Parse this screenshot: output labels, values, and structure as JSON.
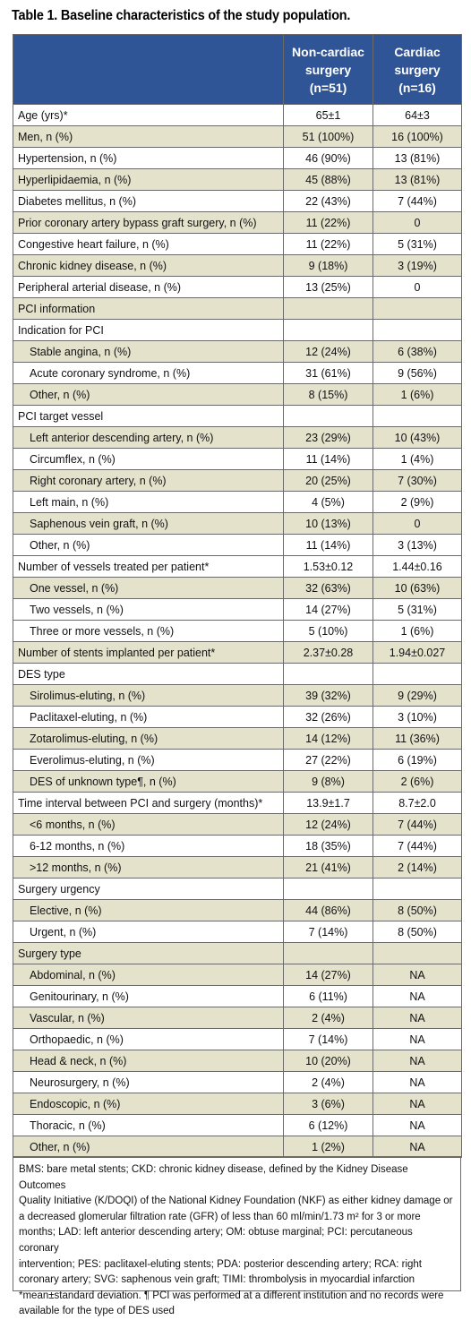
{
  "title": "Table 1. Baseline characteristics of the study population.",
  "header": {
    "col1": "",
    "col2": [
      "Non-cardiac",
      "surgery",
      "(n=51)"
    ],
    "col3": [
      "Cardiac",
      "surgery",
      "(n=16)"
    ]
  },
  "rows": [
    {
      "label": "Age (yrs)*",
      "a": "65±1",
      "b": "64±3",
      "indent": false,
      "shade": false
    },
    {
      "label": "Men, n (%)",
      "a": "51 (100%)",
      "b": "16 (100%)",
      "indent": false,
      "shade": true
    },
    {
      "label": "Hypertension, n (%)",
      "a": "46 (90%)",
      "b": "13 (81%)",
      "indent": false,
      "shade": false
    },
    {
      "label": "Hyperlipidaemia, n (%)",
      "a": "45 (88%)",
      "b": "13 (81%)",
      "indent": false,
      "shade": true
    },
    {
      "label": "Diabetes mellitus, n (%)",
      "a": "22 (43%)",
      "b": "7 (44%)",
      "indent": false,
      "shade": false
    },
    {
      "label": "Prior coronary artery bypass graft surgery, n (%)",
      "a": "11 (22%)",
      "b": "0",
      "indent": false,
      "shade": true
    },
    {
      "label": "Congestive heart failure, n (%)",
      "a": "11 (22%)",
      "b": "5 (31%)",
      "indent": false,
      "shade": false
    },
    {
      "label": "Chronic kidney disease, n (%)",
      "a": "9 (18%)",
      "b": "3 (19%)",
      "indent": false,
      "shade": true
    },
    {
      "label": "Peripheral arterial disease, n (%)",
      "a": "13 (25%)",
      "b": "0",
      "indent": false,
      "shade": false
    },
    {
      "label": "PCI information",
      "a": "",
      "b": "",
      "indent": false,
      "shade": true,
      "section": true
    },
    {
      "label": "Indication for PCI",
      "a": "",
      "b": "",
      "indent": false,
      "shade": false,
      "section": true
    },
    {
      "label": "Stable angina, n (%)",
      "a": "12 (24%)",
      "b": "6 (38%)",
      "indent": true,
      "shade": true
    },
    {
      "label": "Acute coronary syndrome, n (%)",
      "a": "31 (61%)",
      "b": "9 (56%)",
      "indent": true,
      "shade": false
    },
    {
      "label": "Other, n (%)",
      "a": "8 (15%)",
      "b": "1 (6%)",
      "indent": true,
      "shade": true
    },
    {
      "label": "PCI target vessel",
      "a": "",
      "b": "",
      "indent": false,
      "shade": false,
      "section": true
    },
    {
      "label": "Left anterior descending artery, n (%)",
      "a": "23 (29%)",
      "b": "10 (43%)",
      "indent": true,
      "shade": true
    },
    {
      "label": "Circumflex, n (%)",
      "a": "11 (14%)",
      "b": "1 (4%)",
      "indent": true,
      "shade": false
    },
    {
      "label": "Right coronary artery, n (%)",
      "a": "20 (25%)",
      "b": "7 (30%)",
      "indent": true,
      "shade": true
    },
    {
      "label": "Left main, n (%)",
      "a": "4 (5%)",
      "b": "2 (9%)",
      "indent": true,
      "shade": false
    },
    {
      "label": "Saphenous vein graft, n (%)",
      "a": "10 (13%)",
      "b": "0",
      "indent": true,
      "shade": true
    },
    {
      "label": "Other, n (%)",
      "a": "11 (14%)",
      "b": "3 (13%)",
      "indent": true,
      "shade": false
    },
    {
      "label": "Number of vessels treated per patient*",
      "a": "1.53±0.12",
      "b": "1.44±0.16",
      "indent": false,
      "shade": false
    },
    {
      "label": "One vessel, n (%)",
      "a": "32 (63%)",
      "b": "10 (63%)",
      "indent": true,
      "shade": true
    },
    {
      "label": "Two vessels, n (%)",
      "a": "14 (27%)",
      "b": "5 (31%)",
      "indent": true,
      "shade": false
    },
    {
      "label": "Three or more vessels, n (%)",
      "a": "5 (10%)",
      "b": "1 (6%)",
      "indent": true,
      "shade": false
    },
    {
      "label": "Number of stents implanted per patient*",
      "a": "2.37±0.28",
      "b": "1.94±0.027",
      "indent": false,
      "shade": true
    },
    {
      "label": "DES type",
      "a": "",
      "b": "",
      "indent": false,
      "shade": false,
      "section": true
    },
    {
      "label": "Sirolimus-eluting, n (%)",
      "a": "39 (32%)",
      "b": "9 (29%)",
      "indent": true,
      "shade": true
    },
    {
      "label": "Paclitaxel-eluting, n (%)",
      "a": "32 (26%)",
      "b": "3 (10%)",
      "indent": true,
      "shade": false
    },
    {
      "label": "Zotarolimus-eluting, n (%)",
      "a": "14 (12%)",
      "b": "11 (36%)",
      "indent": true,
      "shade": true
    },
    {
      "label": "Everolimus-eluting, n (%)",
      "a": "27 (22%)",
      "b": "6 (19%)",
      "indent": true,
      "shade": false
    },
    {
      "label": "DES of unknown type¶, n (%)",
      "a": "9 (8%)",
      "b": "2 (6%)",
      "indent": true,
      "shade": true
    },
    {
      "label": "Time interval between PCI and surgery (months)*",
      "a": "13.9±1.7",
      "b": "8.7±2.0",
      "indent": false,
      "shade": false
    },
    {
      "label": "<6 months, n (%)",
      "a": "12 (24%)",
      "b": "7 (44%)",
      "indent": true,
      "shade": true
    },
    {
      "label": "6-12 months, n (%)",
      "a": "18 (35%)",
      "b": "7 (44%)",
      "indent": true,
      "shade": false
    },
    {
      "label": ">12 months, n (%)",
      "a": "21 (41%)",
      "b": "2 (14%)",
      "indent": true,
      "shade": true
    },
    {
      "label": "Surgery urgency",
      "a": "",
      "b": "",
      "indent": false,
      "shade": false,
      "section": true
    },
    {
      "label": "Elective, n (%)",
      "a": "44 (86%)",
      "b": "8 (50%)",
      "indent": true,
      "shade": true
    },
    {
      "label": "Urgent, n (%)",
      "a": "7 (14%)",
      "b": "8 (50%)",
      "indent": true,
      "shade": false
    },
    {
      "label": "Surgery type",
      "a": "",
      "b": "",
      "indent": false,
      "shade": true,
      "section": true
    },
    {
      "label": "Abdominal, n (%)",
      "a": "14 (27%)",
      "b": "NA",
      "indent": true,
      "shade": true
    },
    {
      "label": "Genitourinary, n (%)",
      "a": "6 (11%)",
      "b": "NA",
      "indent": true,
      "shade": false
    },
    {
      "label": "Vascular, n (%)",
      "a": "2 (4%)",
      "b": "NA",
      "indent": true,
      "shade": true
    },
    {
      "label": "Orthopaedic, n (%)",
      "a": "7 (14%)",
      "b": "NA",
      "indent": true,
      "shade": false
    },
    {
      "label": "Head & neck, n (%)",
      "a": "10 (20%)",
      "b": "NA",
      "indent": true,
      "shade": true
    },
    {
      "label": "Neurosurgery, n (%)",
      "a": "2 (4%)",
      "b": "NA",
      "indent": true,
      "shade": false
    },
    {
      "label": "Endoscopic, n (%)",
      "a": "3 (6%)",
      "b": "NA",
      "indent": true,
      "shade": true
    },
    {
      "label": "Thoracic, n (%)",
      "a": "6 (12%)",
      "b": "NA",
      "indent": true,
      "shade": false
    },
    {
      "label": "Other, n (%)",
      "a": "1 (2%)",
      "b": "NA",
      "indent": true,
      "shade": true
    }
  ],
  "footnote": [
    "BMS: bare metal stents; CKD: chronic kidney disease, defined by the Kidney Disease Outcomes",
    "Quality Initiative (K/DOQI) of the National Kidney Foundation (NKF) as either kidney damage or",
    "a decreased glomerular filtration rate (GFR) of less than 60 ml/min/1.73 m² for 3 or more",
    "months; LAD: left anterior descending artery; OM: obtuse marginal; PCI: percutaneous coronary",
    "intervention; PES: paclitaxel-eluting stents; PDA: posterior descending artery; RCA: right",
    "coronary artery; SVG: saphenous vein graft; TIMI: thrombolysis in myocardial infarction",
    "*mean±standard deviation. ¶ PCI was performed at a different institution and no records were",
    "available for the type of DES used"
  ],
  "colors": {
    "header_bg": "#2f5597",
    "row_shade": "#e5e2cc"
  }
}
